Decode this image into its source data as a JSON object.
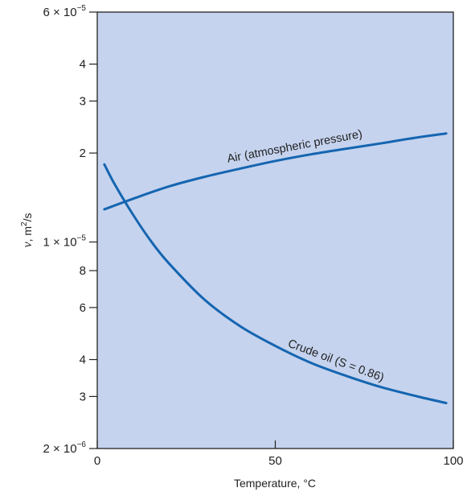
{
  "chart_data": {
    "type": "line",
    "xlabel": "Temperature, °C",
    "ylabel": {
      "nu": "ν",
      "unit_base": ", m",
      "unit_exp": "2",
      "unit_tail": "/s"
    },
    "y_scale": "log",
    "xlim": [
      0,
      100
    ],
    "ylim": [
      2e-06,
      6e-05
    ],
    "background_color": "#c5d3ee",
    "line_color": "#1565b0",
    "grid": false,
    "x_ticks": [
      {
        "value": 0,
        "label": "0"
      },
      {
        "value": 50,
        "label": "50"
      },
      {
        "value": 100,
        "label": "100"
      }
    ],
    "y_ticks": [
      {
        "value": 6e-05,
        "label": "6 × 10",
        "exp": "−5"
      },
      {
        "value": 4e-05,
        "label": "4",
        "exp": ""
      },
      {
        "value": 3e-05,
        "label": "3",
        "exp": ""
      },
      {
        "value": 2e-05,
        "label": "2",
        "exp": ""
      },
      {
        "value": 1e-05,
        "label": "1 × 10",
        "exp": "−5"
      },
      {
        "value": 8e-06,
        "label": "8",
        "exp": ""
      },
      {
        "value": 6e-06,
        "label": "6",
        "exp": ""
      },
      {
        "value": 4e-06,
        "label": "4",
        "exp": ""
      },
      {
        "value": 3e-06,
        "label": "3",
        "exp": ""
      },
      {
        "value": 2e-06,
        "label": "2 × 10",
        "exp": "−6"
      }
    ],
    "series": [
      {
        "name": "Air (atmospheric pressure)",
        "label_at_x": 56,
        "label_offset": -9,
        "x": [
          2,
          10,
          20,
          30,
          40,
          50,
          60,
          70,
          80,
          90,
          98
        ],
        "y": [
          1.29e-05,
          1.4e-05,
          1.54e-05,
          1.66e-05,
          1.77e-05,
          1.88e-05,
          1.98e-05,
          2.07e-05,
          2.16e-05,
          2.26e-05,
          2.33e-05
        ]
      },
      {
        "name": "Crude oil (S = 0.86)",
        "label_at_x": 66,
        "label_offset": -9,
        "x": [
          2,
          5,
          10,
          15,
          20,
          30,
          40,
          50,
          60,
          70,
          80,
          90,
          98
        ],
        "y": [
          1.83e-05,
          1.56e-05,
          1.24e-05,
          1.01e-05,
          8.5e-06,
          6.4e-06,
          5.2e-06,
          4.45e-06,
          3.9e-06,
          3.52e-06,
          3.22e-06,
          3e-06,
          2.85e-06
        ]
      }
    ]
  }
}
